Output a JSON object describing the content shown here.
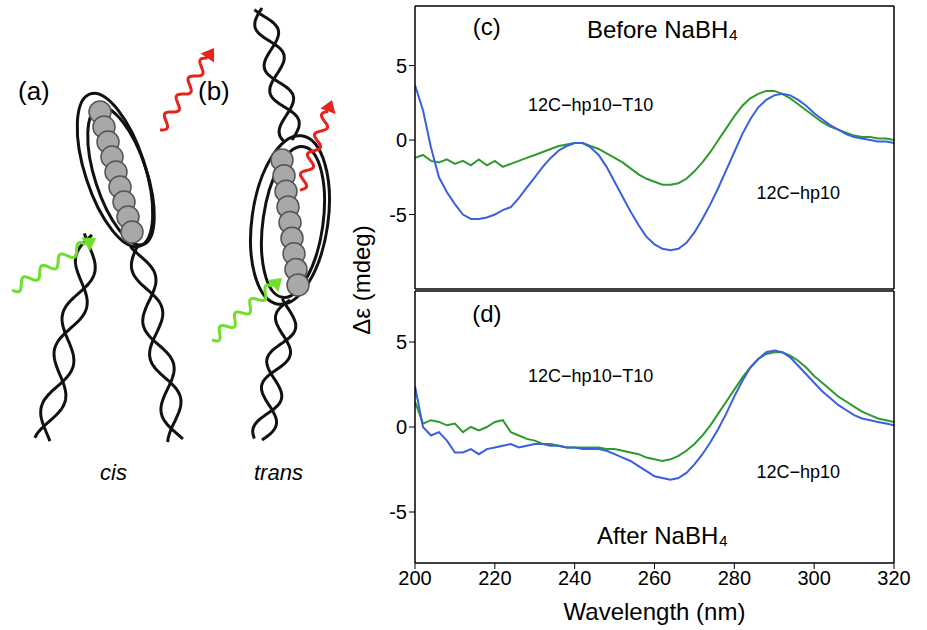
{
  "diagrams": [
    {
      "label": "(a)",
      "caption": "cis"
    },
    {
      "label": "(b)",
      "caption": "trans"
    }
  ],
  "chart_data": [
    {
      "type": "line",
      "panel": "(c)",
      "title": "Before NaBH₄",
      "ylabel": "Δε (mdeg)",
      "tick_labels": "y",
      "xlim": [
        200,
        320
      ],
      "xticks": [
        200,
        220,
        240,
        260,
        280,
        300,
        320
      ],
      "ylim": [
        -10,
        9
      ],
      "yticks": [
        -5,
        0,
        5
      ],
      "x": [
        200,
        202,
        204,
        206,
        208,
        210,
        212,
        214,
        216,
        218,
        220,
        222,
        224,
        226,
        228,
        230,
        232,
        234,
        236,
        238,
        240,
        242,
        244,
        246,
        248,
        250,
        252,
        254,
        256,
        258,
        260,
        262,
        264,
        266,
        268,
        270,
        272,
        274,
        276,
        278,
        280,
        282,
        284,
        286,
        288,
        290,
        292,
        294,
        296,
        298,
        300,
        302,
        304,
        306,
        308,
        310,
        312,
        314,
        316,
        318,
        320
      ],
      "series": [
        {
          "name": "12C−hp10−T10",
          "color": "#2e9a2e",
          "values": [
            -1.2,
            -1.0,
            -1.4,
            -1.5,
            -1.3,
            -1.6,
            -1.4,
            -1.7,
            -1.3,
            -1.7,
            -1.4,
            -1.8,
            -1.6,
            -1.4,
            -1.2,
            -1.0,
            -0.8,
            -0.6,
            -0.4,
            -0.3,
            -0.2,
            -0.2,
            -0.4,
            -0.6,
            -0.9,
            -1.2,
            -1.5,
            -1.9,
            -2.3,
            -2.6,
            -2.8,
            -3.0,
            -3.0,
            -2.9,
            -2.6,
            -2.1,
            -1.5,
            -0.8,
            0.0,
            0.8,
            1.6,
            2.3,
            2.8,
            3.1,
            3.3,
            3.3,
            3.1,
            2.8,
            2.4,
            2.0,
            1.6,
            1.2,
            0.9,
            0.7,
            0.5,
            0.3,
            0.2,
            0.2,
            0.1,
            0.1,
            0.0
          ]
        },
        {
          "name": "12C−hp10",
          "color": "#3a5fe0",
          "values": [
            3.7,
            2.0,
            -0.5,
            -2.5,
            -3.5,
            -4.3,
            -5.0,
            -5.3,
            -5.3,
            -5.2,
            -5.0,
            -4.7,
            -4.5,
            -3.9,
            -3.2,
            -2.5,
            -1.8,
            -1.2,
            -0.7,
            -0.4,
            -0.2,
            -0.2,
            -0.5,
            -1.0,
            -1.8,
            -2.8,
            -3.8,
            -4.8,
            -5.7,
            -6.5,
            -7.0,
            -7.3,
            -7.4,
            -7.3,
            -6.9,
            -6.2,
            -5.3,
            -4.3,
            -3.2,
            -2.0,
            -0.8,
            0.4,
            1.4,
            2.2,
            2.7,
            3.0,
            3.1,
            3.0,
            2.7,
            2.3,
            1.8,
            1.4,
            1.0,
            0.7,
            0.4,
            0.2,
            0.1,
            0.0,
            -0.1,
            -0.1,
            -0.2
          ]
        }
      ]
    },
    {
      "type": "line",
      "panel": "(d)",
      "title": "After NaBH₄",
      "xlabel": "Wavelength (nm)",
      "xlim": [
        200,
        320
      ],
      "xticks": [
        200,
        220,
        240,
        260,
        280,
        300,
        320
      ],
      "ylim": [
        -8,
        8
      ],
      "yticks": [
        -5,
        0,
        5
      ],
      "x": [
        200,
        202,
        204,
        206,
        208,
        210,
        212,
        214,
        216,
        218,
        220,
        222,
        224,
        226,
        228,
        230,
        232,
        234,
        236,
        238,
        240,
        242,
        244,
        246,
        248,
        250,
        252,
        254,
        256,
        258,
        260,
        262,
        264,
        266,
        268,
        270,
        272,
        274,
        276,
        278,
        280,
        282,
        284,
        286,
        288,
        290,
        292,
        294,
        296,
        298,
        300,
        302,
        304,
        306,
        308,
        310,
        312,
        314,
        316,
        318,
        320
      ],
      "series": [
        {
          "name": "12C−hp10−T10",
          "color": "#2e9a2e",
          "values": [
            1.5,
            0.2,
            0.4,
            0.3,
            0.1,
            0.2,
            -0.3,
            0.0,
            -0.2,
            0.0,
            0.3,
            0.4,
            -0.3,
            -0.5,
            -0.7,
            -0.8,
            -1.0,
            -1.0,
            -1.1,
            -1.2,
            -1.2,
            -1.2,
            -1.2,
            -1.2,
            -1.3,
            -1.3,
            -1.4,
            -1.5,
            -1.6,
            -1.8,
            -1.9,
            -2.0,
            -1.9,
            -1.7,
            -1.4,
            -1.0,
            -0.5,
            0.1,
            0.8,
            1.5,
            2.2,
            2.9,
            3.5,
            4.0,
            4.3,
            4.4,
            4.4,
            4.2,
            3.9,
            3.5,
            3.0,
            2.6,
            2.2,
            1.8,
            1.5,
            1.2,
            0.9,
            0.7,
            0.5,
            0.4,
            0.3
          ]
        },
        {
          "name": "12C−hp10",
          "color": "#3a5fe0",
          "values": [
            2.4,
            0.0,
            -0.5,
            -0.3,
            -0.8,
            -1.5,
            -1.5,
            -1.3,
            -1.6,
            -1.3,
            -1.2,
            -1.1,
            -1.0,
            -1.2,
            -1.1,
            -1.0,
            -1.0,
            -1.1,
            -1.1,
            -1.2,
            -1.2,
            -1.3,
            -1.3,
            -1.3,
            -1.4,
            -1.6,
            -1.8,
            -2.0,
            -2.3,
            -2.6,
            -2.9,
            -3.0,
            -3.1,
            -3.0,
            -2.7,
            -2.2,
            -1.6,
            -0.9,
            -0.1,
            0.8,
            1.8,
            2.7,
            3.5,
            4.0,
            4.4,
            4.5,
            4.4,
            4.1,
            3.6,
            3.1,
            2.6,
            2.1,
            1.7,
            1.3,
            1.0,
            0.7,
            0.5,
            0.4,
            0.3,
            0.2,
            0.1
          ]
        }
      ]
    }
  ]
}
